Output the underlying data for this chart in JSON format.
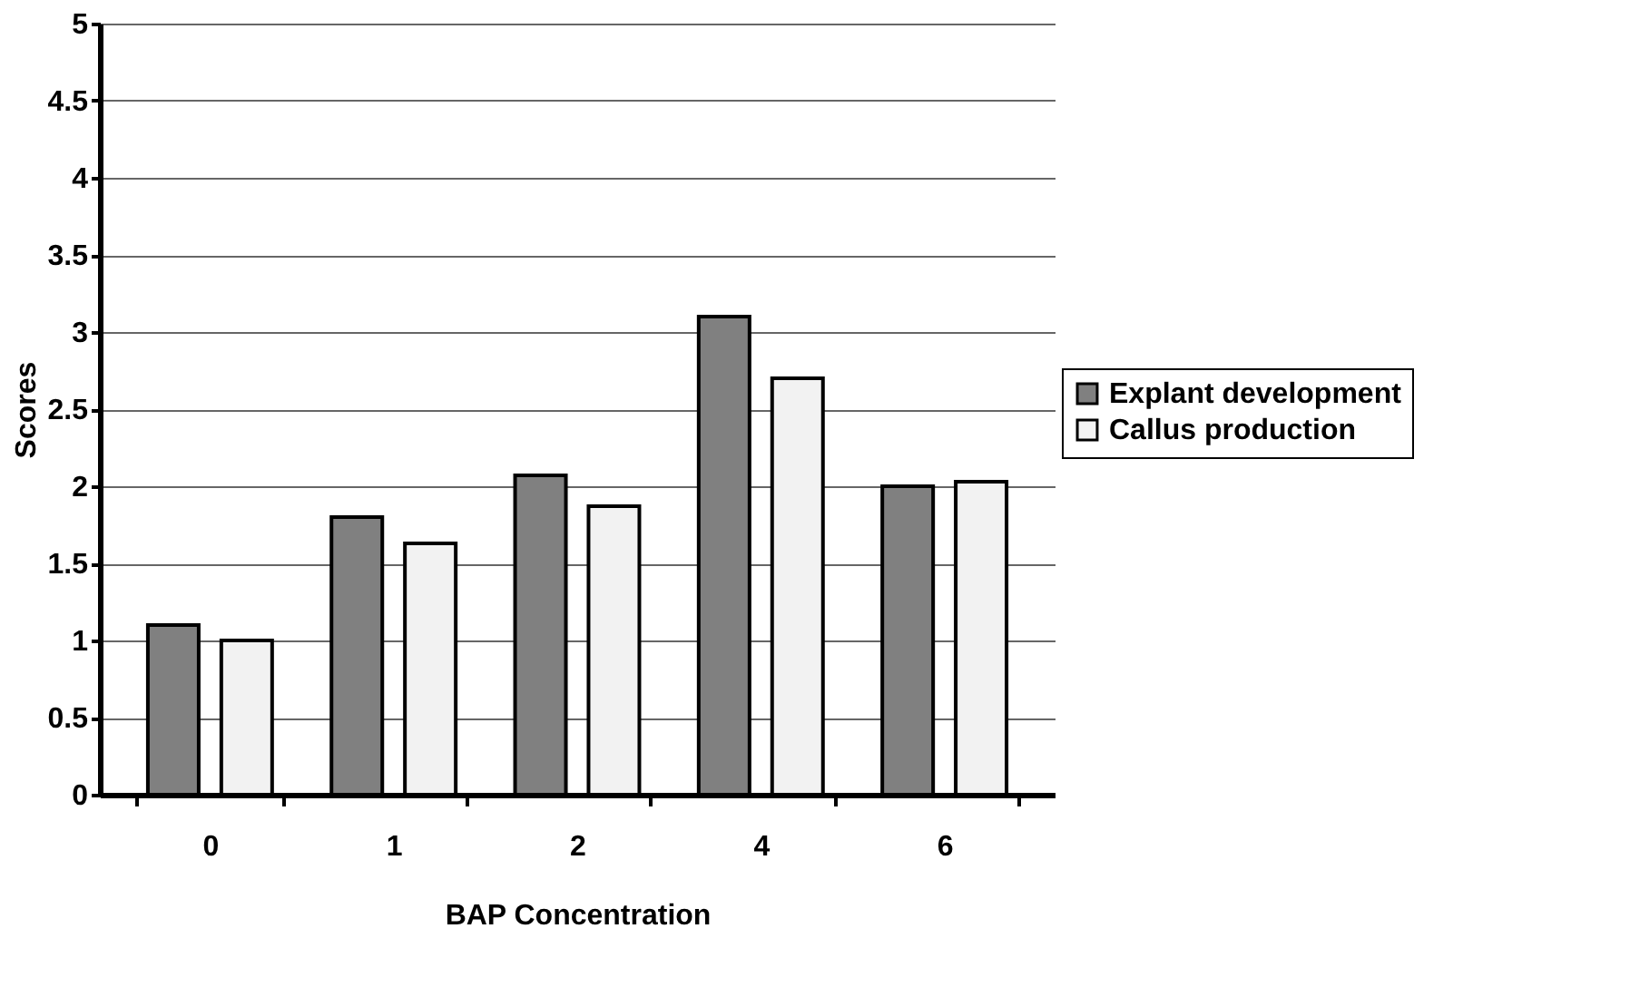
{
  "chart_data": {
    "type": "bar",
    "xlabel": "BAP Concentration",
    "ylabel": "Scores",
    "categories": [
      "0",
      "1",
      "2",
      "4",
      "6"
    ],
    "series": [
      {
        "name": "Explant development",
        "color": "#808080",
        "values": [
          1.1,
          1.8,
          2.07,
          3.1,
          2.0
        ]
      },
      {
        "name": "Callus production",
        "color": "#f2f2f2",
        "values": [
          1.0,
          1.63,
          1.87,
          2.7,
          2.03
        ]
      }
    ],
    "ylim": [
      0,
      5
    ],
    "yticks": [
      0,
      0.5,
      1,
      1.5,
      2,
      2.5,
      3,
      3.5,
      4,
      4.5,
      5
    ],
    "grid": "y",
    "legend": "right"
  }
}
